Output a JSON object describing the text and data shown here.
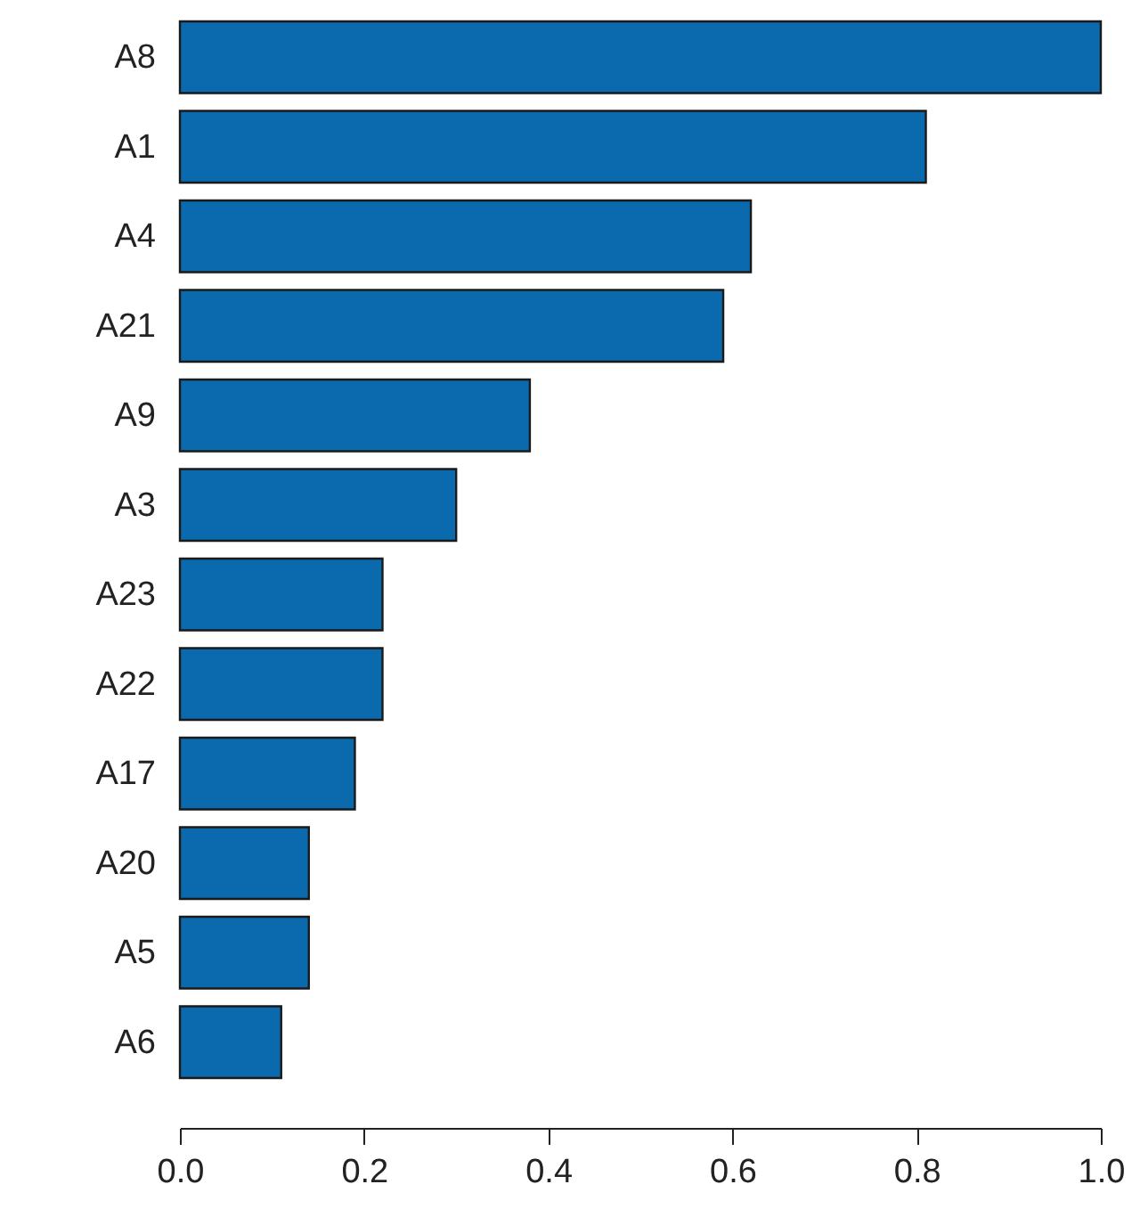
{
  "chart_data": {
    "type": "bar",
    "orientation": "horizontal",
    "categories": [
      "A8",
      "A1",
      "A4",
      "A21",
      "A9",
      "A3",
      "A23",
      "A22",
      "A17",
      "A20",
      "A5",
      "A6"
    ],
    "values": [
      1.0,
      0.81,
      0.62,
      0.59,
      0.38,
      0.3,
      0.22,
      0.22,
      0.19,
      0.14,
      0.14,
      0.11
    ],
    "color": "#0a6aad",
    "xlim": [
      0,
      1
    ],
    "xticks": [
      {
        "value": 0,
        "label": "0.0"
      },
      0.2,
      0.4,
      0.6,
      0.8,
      {
        "value": 1,
        "label": "1.0"
      }
    ],
    "grid": false
  }
}
